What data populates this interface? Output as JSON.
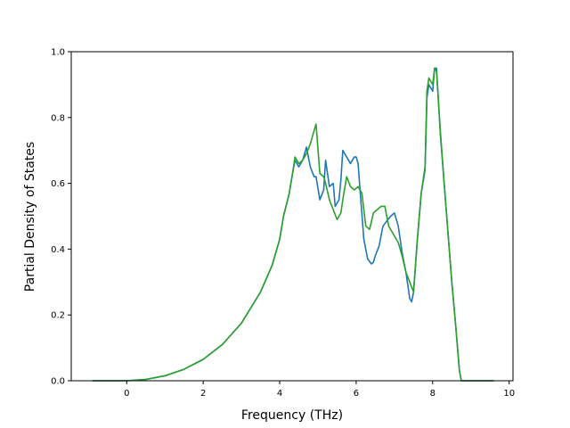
{
  "chart_data": {
    "type": "line",
    "title": "",
    "xlabel": "Frequency (THz)",
    "ylabel": "Partial Density of States",
    "xlim": [
      -1.45,
      10.1
    ],
    "ylim": [
      0.0,
      1.0
    ],
    "x_ticks": [
      0,
      2,
      4,
      6,
      8,
      10
    ],
    "y_ticks": [
      0.0,
      0.2,
      0.4,
      0.6,
      0.8,
      1.0
    ],
    "x_tick_labels": [
      "0",
      "2",
      "4",
      "6",
      "8",
      "10"
    ],
    "y_tick_labels": [
      "0.0",
      "0.2",
      "0.4",
      "0.6",
      "0.8",
      "1.0"
    ],
    "grid": false,
    "series": [
      {
        "color": "#1f77b4",
        "x": [
          -0.9,
          -0.5,
          0.0,
          0.5,
          1.0,
          1.5,
          2.0,
          2.5,
          3.0,
          3.5,
          3.8,
          4.0,
          4.1,
          4.25,
          4.35,
          4.4,
          4.5,
          4.6,
          4.7,
          4.8,
          4.9,
          4.95,
          5.05,
          5.15,
          5.2,
          5.3,
          5.4,
          5.45,
          5.55,
          5.6,
          5.65,
          5.75,
          5.85,
          5.95,
          6.0,
          6.05,
          6.1,
          6.2,
          6.3,
          6.4,
          6.45,
          6.5,
          6.6,
          6.7,
          6.9,
          7.0,
          7.1,
          7.2,
          7.3,
          7.4,
          7.45,
          7.5,
          7.6,
          7.7,
          7.8,
          7.85,
          7.9,
          8.0,
          8.05,
          8.1,
          8.2,
          8.3,
          8.4,
          8.5,
          8.6,
          8.7,
          8.75,
          8.8,
          9.0,
          9.3,
          9.6
        ],
        "y": [
          0.0,
          0.0,
          0.0,
          0.004,
          0.015,
          0.035,
          0.065,
          0.11,
          0.175,
          0.27,
          0.35,
          0.43,
          0.5,
          0.57,
          0.64,
          0.67,
          0.65,
          0.67,
          0.71,
          0.65,
          0.62,
          0.62,
          0.55,
          0.58,
          0.67,
          0.59,
          0.6,
          0.53,
          0.55,
          0.61,
          0.7,
          0.68,
          0.66,
          0.68,
          0.68,
          0.66,
          0.58,
          0.43,
          0.37,
          0.355,
          0.36,
          0.38,
          0.41,
          0.47,
          0.5,
          0.51,
          0.47,
          0.39,
          0.33,
          0.25,
          0.24,
          0.27,
          0.43,
          0.57,
          0.64,
          0.86,
          0.9,
          0.88,
          0.95,
          0.95,
          0.75,
          0.6,
          0.45,
          0.3,
          0.17,
          0.03,
          0.0,
          0.0,
          0.0,
          0.0,
          0.0
        ]
      },
      {
        "color": "#2ca02c",
        "x": [
          -0.9,
          -0.5,
          0.0,
          0.5,
          1.0,
          1.5,
          2.0,
          2.5,
          3.0,
          3.5,
          3.8,
          4.0,
          4.1,
          4.25,
          4.35,
          4.4,
          4.5,
          4.6,
          4.7,
          4.8,
          4.9,
          4.95,
          5.05,
          5.15,
          5.2,
          5.3,
          5.4,
          5.5,
          5.6,
          5.65,
          5.75,
          5.85,
          5.95,
          6.05,
          6.15,
          6.25,
          6.35,
          6.45,
          6.55,
          6.65,
          6.75,
          6.85,
          7.0,
          7.1,
          7.2,
          7.3,
          7.4,
          7.5,
          7.6,
          7.7,
          7.8,
          7.85,
          7.9,
          8.0,
          8.05,
          8.1,
          8.2,
          8.3,
          8.4,
          8.5,
          8.6,
          8.7,
          8.75,
          8.8,
          9.0,
          9.3,
          9.6
        ],
        "y": [
          0.0,
          0.0,
          0.0,
          0.004,
          0.015,
          0.035,
          0.065,
          0.11,
          0.175,
          0.27,
          0.35,
          0.43,
          0.5,
          0.57,
          0.64,
          0.68,
          0.66,
          0.67,
          0.69,
          0.72,
          0.76,
          0.78,
          0.63,
          0.62,
          0.6,
          0.55,
          0.52,
          0.49,
          0.51,
          0.55,
          0.62,
          0.59,
          0.58,
          0.59,
          0.57,
          0.47,
          0.46,
          0.51,
          0.52,
          0.53,
          0.53,
          0.47,
          0.44,
          0.42,
          0.38,
          0.33,
          0.3,
          0.27,
          0.43,
          0.57,
          0.65,
          0.88,
          0.92,
          0.9,
          0.95,
          0.94,
          0.76,
          0.6,
          0.45,
          0.3,
          0.17,
          0.03,
          0.0,
          0.0,
          0.0,
          0.0,
          0.0
        ]
      }
    ]
  }
}
